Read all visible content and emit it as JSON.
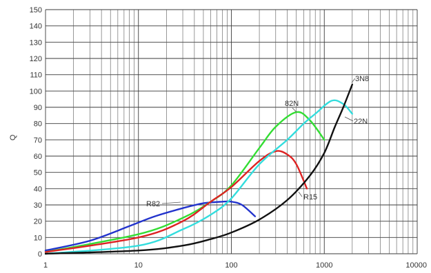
{
  "chart_data": {
    "type": "line",
    "title": "",
    "xlabel": "",
    "ylabel": "Q",
    "x_scale": "log",
    "xlim": [
      1,
      10000
    ],
    "ylim": [
      0,
      150
    ],
    "grid": true,
    "x_ticks": [
      "1",
      "10",
      "100",
      "1000",
      "10000"
    ],
    "y_ticks": [
      "0",
      "10",
      "20",
      "30",
      "40",
      "50",
      "60",
      "70",
      "80",
      "90",
      "100",
      "110",
      "120",
      "130",
      "140",
      "150"
    ],
    "series": [
      {
        "name": "R82",
        "color": "#2233cc",
        "x": [
          1,
          3,
          8,
          15,
          30,
          50,
          80,
          100,
          130,
          180
        ],
        "y": [
          2,
          8,
          17,
          23,
          28,
          31,
          32,
          32,
          30,
          23
        ]
      },
      {
        "name": "82N",
        "color": "#33dd33",
        "x": [
          1,
          10,
          30,
          60,
          100,
          200,
          300,
          500,
          700,
          1000
        ],
        "y": [
          1,
          12,
          22,
          32,
          42,
          65,
          78,
          87,
          82,
          70
        ]
      },
      {
        "name": "R15",
        "color": "#dd2222",
        "x": [
          1,
          10,
          30,
          60,
          100,
          200,
          300,
          400,
          500,
          650
        ],
        "y": [
          1,
          10,
          20,
          32,
          41,
          57,
          63,
          61,
          55,
          40
        ]
      },
      {
        "name": "22N",
        "color": "#33dddd",
        "x": [
          1,
          10,
          30,
          60,
          100,
          200,
          400,
          600,
          800,
          1200,
          1600,
          2000
        ],
        "y": [
          0,
          5,
          15,
          24,
          34,
          55,
          70,
          80,
          86,
          94,
          92,
          86
        ]
      },
      {
        "name": "3N8",
        "color": "#111111",
        "x": [
          1,
          10,
          30,
          60,
          100,
          200,
          400,
          700,
          1000,
          1300,
          1600,
          2000
        ],
        "y": [
          0,
          2,
          5,
          9,
          13,
          21,
          33,
          48,
          62,
          78,
          90,
          104
        ]
      }
    ]
  }
}
